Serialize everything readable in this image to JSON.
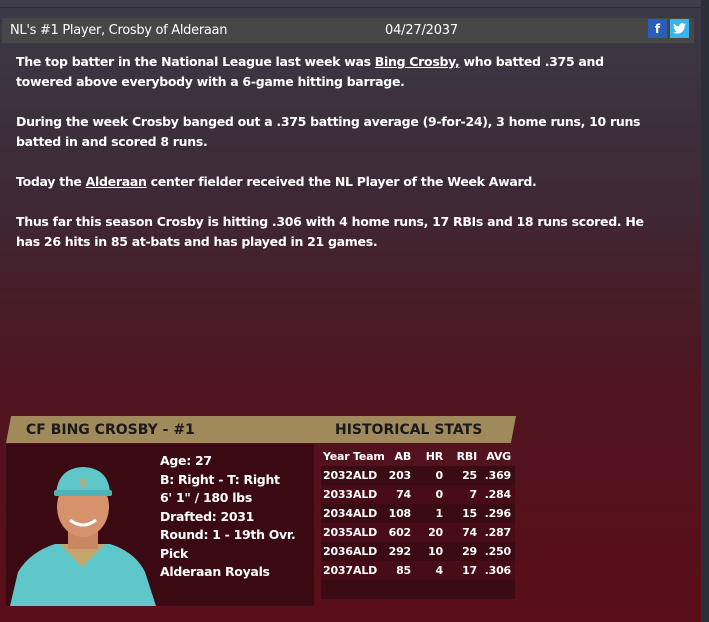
{
  "article": {
    "title": "NL's #1 Player, Crosby of Alderaan",
    "date": "04/27/2037",
    "facebook": "f",
    "twitter": "t",
    "p1_a": "The top batter in the National League last week was ",
    "p1_link": "Bing Crosby,",
    "p1_b": " who batted .375 and towered above everybody with a 6-game hitting barrage.",
    "p2": "During the week Crosby banged out a .375 batting average (9-for-24), 3 home runs, 10 runs batted in and scored 8 runs.",
    "p3_a": "Today the ",
    "p3_link": "Alderaan",
    "p3_b": " center fielder received the NL Player of the Week Award.",
    "p4": "Thus far this season Crosby is hitting .306 with 4 home runs, 17 RBIs and 18 runs scored. He has 26 hits in 85 at-bats and has played in 21 games."
  },
  "player": {
    "banner": "CF BING CROSBY - #1",
    "age": "Age: 27",
    "bats_throws": "B: Right - T: Right",
    "height_weight": "6' 1\" / 180 lbs",
    "drafted": "Drafted: 2031",
    "round": "Round: 1 - 19th Ovr. Pick",
    "team": "Alderaan Royals"
  },
  "stats": {
    "title": "HISTORICAL STATS",
    "headers": [
      "Year",
      "Team",
      "AB",
      "HR",
      "RBI",
      "AVG"
    ],
    "rows": [
      [
        "2032",
        "ALD",
        "203",
        "0",
        "25",
        ".369"
      ],
      [
        "2033",
        "ALD",
        "74",
        "0",
        "7",
        ".284"
      ],
      [
        "2034",
        "ALD",
        "108",
        "1",
        "15",
        ".296"
      ],
      [
        "2035",
        "ALD",
        "602",
        "20",
        "74",
        ".287"
      ],
      [
        "2036",
        "ALD",
        "292",
        "10",
        "29",
        ".250"
      ],
      [
        "2037",
        "ALD",
        "85",
        "4",
        "17",
        ".306"
      ]
    ]
  },
  "colors": {
    "banner": "#a08a5c",
    "header": "#474747",
    "facebook": "#2b5cb8",
    "twitter": "#35b5ea"
  }
}
